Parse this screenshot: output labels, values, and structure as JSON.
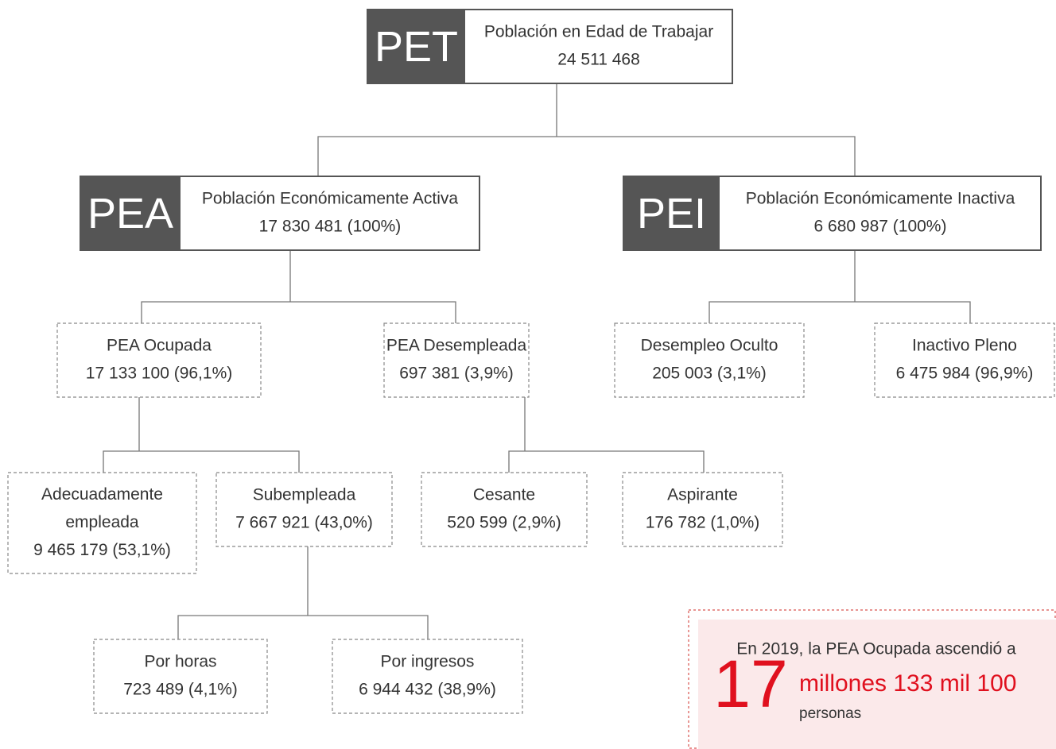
{
  "nodes": [
    {
      "abbr": "PET",
      "lines": [
        "Población en Edad de Trabajar",
        "24 511 468"
      ]
    },
    {
      "abbr": "PEA",
      "lines": [
        "Población Económicamente Activa",
        "17 830 481 (100%)"
      ]
    },
    {
      "abbr": "PEI",
      "lines": [
        "Población Económicamente Inactiva",
        "6 680 987 (100%)"
      ]
    },
    {
      "lines": [
        "PEA Ocupada",
        "17 133 100 (96,1%)"
      ]
    },
    {
      "lines": [
        "PEA Desempleada",
        "697 381 (3,9%)"
      ]
    },
    {
      "lines": [
        "Desempleo Oculto",
        "205 003 (3,1%)"
      ]
    },
    {
      "lines": [
        "Inactivo Pleno",
        "6 475 984 (96,9%)"
      ]
    },
    {
      "lines": [
        "Adecuadamente",
        "empleada",
        "9 465 179 (53,1%)"
      ]
    },
    {
      "lines": [
        "Subempleada",
        "7 667 921 (43,0%)"
      ]
    },
    {
      "lines": [
        "Cesante",
        "520 599 (2,9%)"
      ]
    },
    {
      "lines": [
        "Aspirante",
        "176 782 (1,0%)"
      ]
    },
    {
      "lines": [
        "Por horas",
        "723 489 (4,1%)"
      ]
    },
    {
      "lines": [
        "Por ingresos",
        "6 944 432 (38,9%)"
      ]
    }
  ],
  "callout": {
    "text": "En 2019, la PEA Ocupada ascendió a",
    "number": "17",
    "unit": "millones 133 mil 100",
    "note": "personas"
  }
}
